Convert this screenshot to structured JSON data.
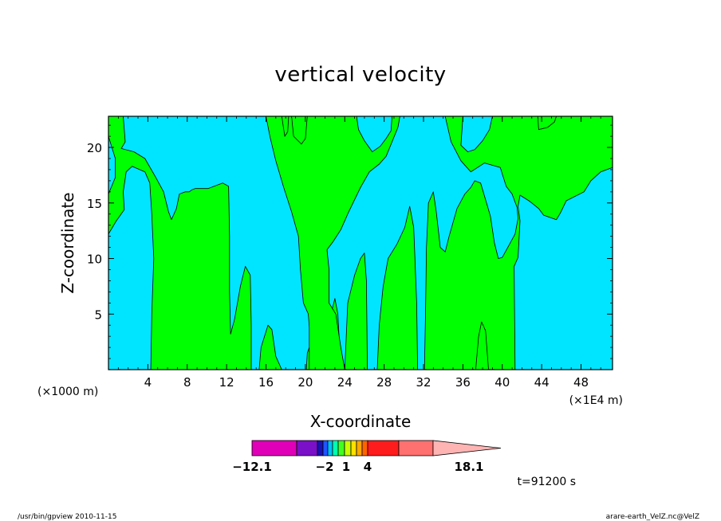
{
  "chart_data": {
    "type": "heatmap",
    "title": "vertical velocity",
    "xlabel": "X-coordinate",
    "ylabel": "Z-coordinate",
    "x_multiplier_left": "(×1000 m)",
    "x_multiplier_right": "(×1E4 m)",
    "xlim": [
      0,
      51.2
    ],
    "ylim": [
      0,
      22.8
    ],
    "xticks": [
      4,
      8,
      12,
      16,
      20,
      24,
      28,
      32,
      36,
      40,
      44,
      48
    ],
    "xtick_labels": [
      "4",
      "8",
      "12",
      "16",
      "20",
      "24",
      "28",
      "32",
      "36",
      "40",
      "44",
      "48"
    ],
    "yticks": [
      5,
      10,
      15,
      20
    ],
    "ytick_labels": [
      "5",
      "10",
      "15",
      "20"
    ],
    "fill_colors": {
      "background": "#00e5ff",
      "regions": "#00ff00"
    },
    "regions": [
      {
        "name": "region-a",
        "points": [
          [
            4.3,
            0
          ],
          [
            4.4,
            5
          ],
          [
            4.6,
            10
          ],
          [
            4.4,
            14
          ],
          [
            4.2,
            16.8
          ],
          [
            3.7,
            17.8
          ],
          [
            2.4,
            18.3
          ],
          [
            1.8,
            17.8
          ],
          [
            1.5,
            16
          ],
          [
            1.6,
            14.4
          ],
          [
            0.8,
            13.4
          ],
          [
            0,
            12.2
          ],
          [
            0,
            15.8
          ],
          [
            0.7,
            17.3
          ],
          [
            0.7,
            19
          ],
          [
            0,
            21
          ],
          [
            0,
            22.8
          ],
          [
            1.5,
            22.8
          ],
          [
            1.7,
            20.5
          ],
          [
            1.3,
            19.9
          ],
          [
            2.6,
            19.6
          ],
          [
            3.7,
            19
          ],
          [
            4.8,
            17.3
          ],
          [
            5.6,
            16
          ],
          [
            6.1,
            14.2
          ],
          [
            6.4,
            13.5
          ],
          [
            6.9,
            14.5
          ],
          [
            7.2,
            15.8
          ],
          [
            7.8,
            16
          ],
          [
            8.2,
            16
          ],
          [
            8.5,
            16.2
          ],
          [
            8.8,
            16.3
          ],
          [
            10.1,
            16.3
          ],
          [
            11.6,
            16.8
          ],
          [
            12.2,
            16.5
          ],
          [
            12.3,
            12
          ],
          [
            12.3,
            7
          ],
          [
            12.4,
            3.2
          ],
          [
            12.8,
            4.5
          ],
          [
            13.4,
            7.5
          ],
          [
            13.9,
            9.3
          ],
          [
            14.4,
            8.5
          ],
          [
            14.5,
            4
          ],
          [
            14.5,
            0
          ]
        ]
      },
      {
        "name": "region-b",
        "points": [
          [
            15.3,
            0
          ],
          [
            15.5,
            2
          ],
          [
            16.2,
            4
          ],
          [
            16.6,
            3.6
          ],
          [
            17.0,
            1.2
          ],
          [
            17.6,
            0
          ]
        ]
      },
      {
        "name": "region-c",
        "points": [
          [
            20.1,
            0
          ],
          [
            20.2,
            1.5
          ],
          [
            21.0,
            3.5
          ],
          [
            22.0,
            3.6
          ],
          [
            22.5,
            4.6
          ],
          [
            23.0,
            6.4
          ],
          [
            23.3,
            5
          ],
          [
            23.6,
            0
          ]
        ]
      },
      {
        "name": "region-d",
        "points": [
          [
            24.0,
            0
          ],
          [
            24.3,
            6
          ],
          [
            25.0,
            8.5
          ],
          [
            25.6,
            10
          ],
          [
            26.0,
            10.5
          ],
          [
            26.2,
            8
          ],
          [
            26.3,
            0
          ]
        ]
      },
      {
        "name": "region-e",
        "points": [
          [
            27.3,
            0
          ],
          [
            27.5,
            4
          ],
          [
            27.9,
            7.5
          ],
          [
            28.4,
            10
          ],
          [
            29.3,
            11.3
          ],
          [
            30.1,
            12.8
          ],
          [
            30.6,
            14.7
          ],
          [
            31.0,
            12.8
          ],
          [
            31.3,
            6
          ],
          [
            31.4,
            0
          ]
        ]
      },
      {
        "name": "region-f",
        "points": [
          [
            32.1,
            0
          ],
          [
            32.2,
            5
          ],
          [
            32.3,
            11
          ],
          [
            32.5,
            15
          ],
          [
            33.0,
            16
          ],
          [
            33.3,
            14.2
          ],
          [
            33.7,
            11
          ],
          [
            34.2,
            10.6
          ],
          [
            34.6,
            12
          ],
          [
            35.4,
            14.5
          ],
          [
            36.2,
            15.8
          ],
          [
            36.8,
            16.4
          ],
          [
            37.2,
            17
          ],
          [
            37.8,
            16.8
          ],
          [
            38.4,
            15
          ],
          [
            38.8,
            13.8
          ],
          [
            39.2,
            11.4
          ],
          [
            39.6,
            10
          ],
          [
            40.0,
            10.1
          ],
          [
            40.5,
            10.9
          ],
          [
            41.3,
            12.2
          ],
          [
            41.6,
            13.6
          ],
          [
            41.5,
            14.6
          ],
          [
            41.0,
            15.8
          ],
          [
            40.4,
            16.5
          ],
          [
            40.0,
            17.6
          ],
          [
            39.8,
            18.2
          ],
          [
            38.2,
            18.6
          ],
          [
            36.8,
            17.8
          ],
          [
            35.8,
            18.8
          ],
          [
            34.8,
            20.5
          ],
          [
            34.2,
            22.8
          ],
          [
            36.0,
            22.8
          ],
          [
            35.8,
            20.2
          ],
          [
            36.5,
            19.6
          ],
          [
            37.2,
            19.8
          ],
          [
            38.0,
            20.6
          ],
          [
            38.7,
            21.6
          ],
          [
            39.0,
            22.8
          ],
          [
            51.2,
            22.8
          ],
          [
            51.2,
            18.2
          ],
          [
            50.0,
            17.8
          ],
          [
            49.0,
            17
          ],
          [
            48.3,
            16
          ],
          [
            46.5,
            15.2
          ],
          [
            45.9,
            14.1
          ],
          [
            45.5,
            13.5
          ],
          [
            44.2,
            13.9
          ],
          [
            43.7,
            14.5
          ],
          [
            43.0,
            15
          ],
          [
            42.7,
            15.2
          ],
          [
            41.8,
            15.7
          ],
          [
            41.6,
            14.7
          ],
          [
            41.8,
            13.4
          ],
          [
            41.6,
            10.1
          ],
          [
            41.2,
            9.3
          ],
          [
            41.3,
            0
          ]
        ]
      },
      {
        "name": "region-g",
        "points": [
          [
            37.3,
            0
          ],
          [
            37.6,
            3
          ],
          [
            37.9,
            4.3
          ],
          [
            38.3,
            3.5
          ],
          [
            38.6,
            0
          ]
        ]
      },
      {
        "name": "region-h",
        "points": [
          [
            16.0,
            22.8
          ],
          [
            16.4,
            21
          ],
          [
            17.0,
            18.8
          ],
          [
            17.8,
            16.4
          ],
          [
            18.6,
            14.2
          ],
          [
            19.3,
            12
          ],
          [
            19.5,
            9
          ],
          [
            19.8,
            6
          ],
          [
            20.3,
            5
          ],
          [
            20.4,
            3.8
          ],
          [
            20.4,
            0
          ],
          [
            24.0,
            0
          ],
          [
            23.6,
            2
          ],
          [
            23.1,
            5
          ],
          [
            22.4,
            6
          ],
          [
            22.4,
            9
          ],
          [
            22.2,
            10.8
          ],
          [
            22.8,
            11.5
          ],
          [
            23.6,
            12.6
          ],
          [
            24.4,
            14.2
          ],
          [
            25.6,
            16.4
          ],
          [
            26.5,
            17.8
          ],
          [
            27.5,
            18.5
          ],
          [
            28.2,
            19.2
          ],
          [
            28.8,
            20.5
          ],
          [
            29.4,
            21.8
          ],
          [
            29.6,
            22.8
          ],
          [
            28.8,
            22.8
          ],
          [
            28.7,
            21.5
          ],
          [
            28.2,
            20.8
          ],
          [
            27.6,
            20.1
          ],
          [
            26.8,
            19.6
          ],
          [
            26.0,
            20.6
          ],
          [
            25.4,
            21.6
          ],
          [
            25.2,
            22.8
          ],
          [
            18.6,
            22.8
          ],
          [
            18.8,
            21
          ],
          [
            19.6,
            20.3
          ],
          [
            20.0,
            20.8
          ],
          [
            20.2,
            22.8
          ]
        ]
      },
      {
        "name": "region-i",
        "points": [
          [
            43.6,
            22.8
          ],
          [
            43.7,
            21.6
          ],
          [
            44.6,
            21.8
          ],
          [
            45.3,
            22.3
          ],
          [
            45.5,
            22.8
          ]
        ]
      },
      {
        "name": "region-j",
        "points": [
          [
            17.6,
            22.8
          ],
          [
            17.9,
            21
          ],
          [
            18.2,
            21.4
          ],
          [
            18.3,
            22.8
          ]
        ]
      }
    ],
    "colorbar": {
      "colors": [
        "#e000b8",
        "#7a10c8",
        "#1a10b8",
        "#2055ff",
        "#00c0ff",
        "#00ffb0",
        "#40ff20",
        "#c8ff00",
        "#ffe000",
        "#ffa800",
        "#ff6400",
        "#ff1c1c",
        "#ff7070",
        "#ffb4b4"
      ],
      "labels": [
        "−12.1",
        "−2",
        "1",
        "4",
        "18.1"
      ]
    },
    "annotations": {
      "time": "t=91200 s",
      "footer_left": "/usr/bin/gpview   2010-11-15",
      "footer_right": "arare-earth_VelZ.nc@VelZ"
    }
  }
}
